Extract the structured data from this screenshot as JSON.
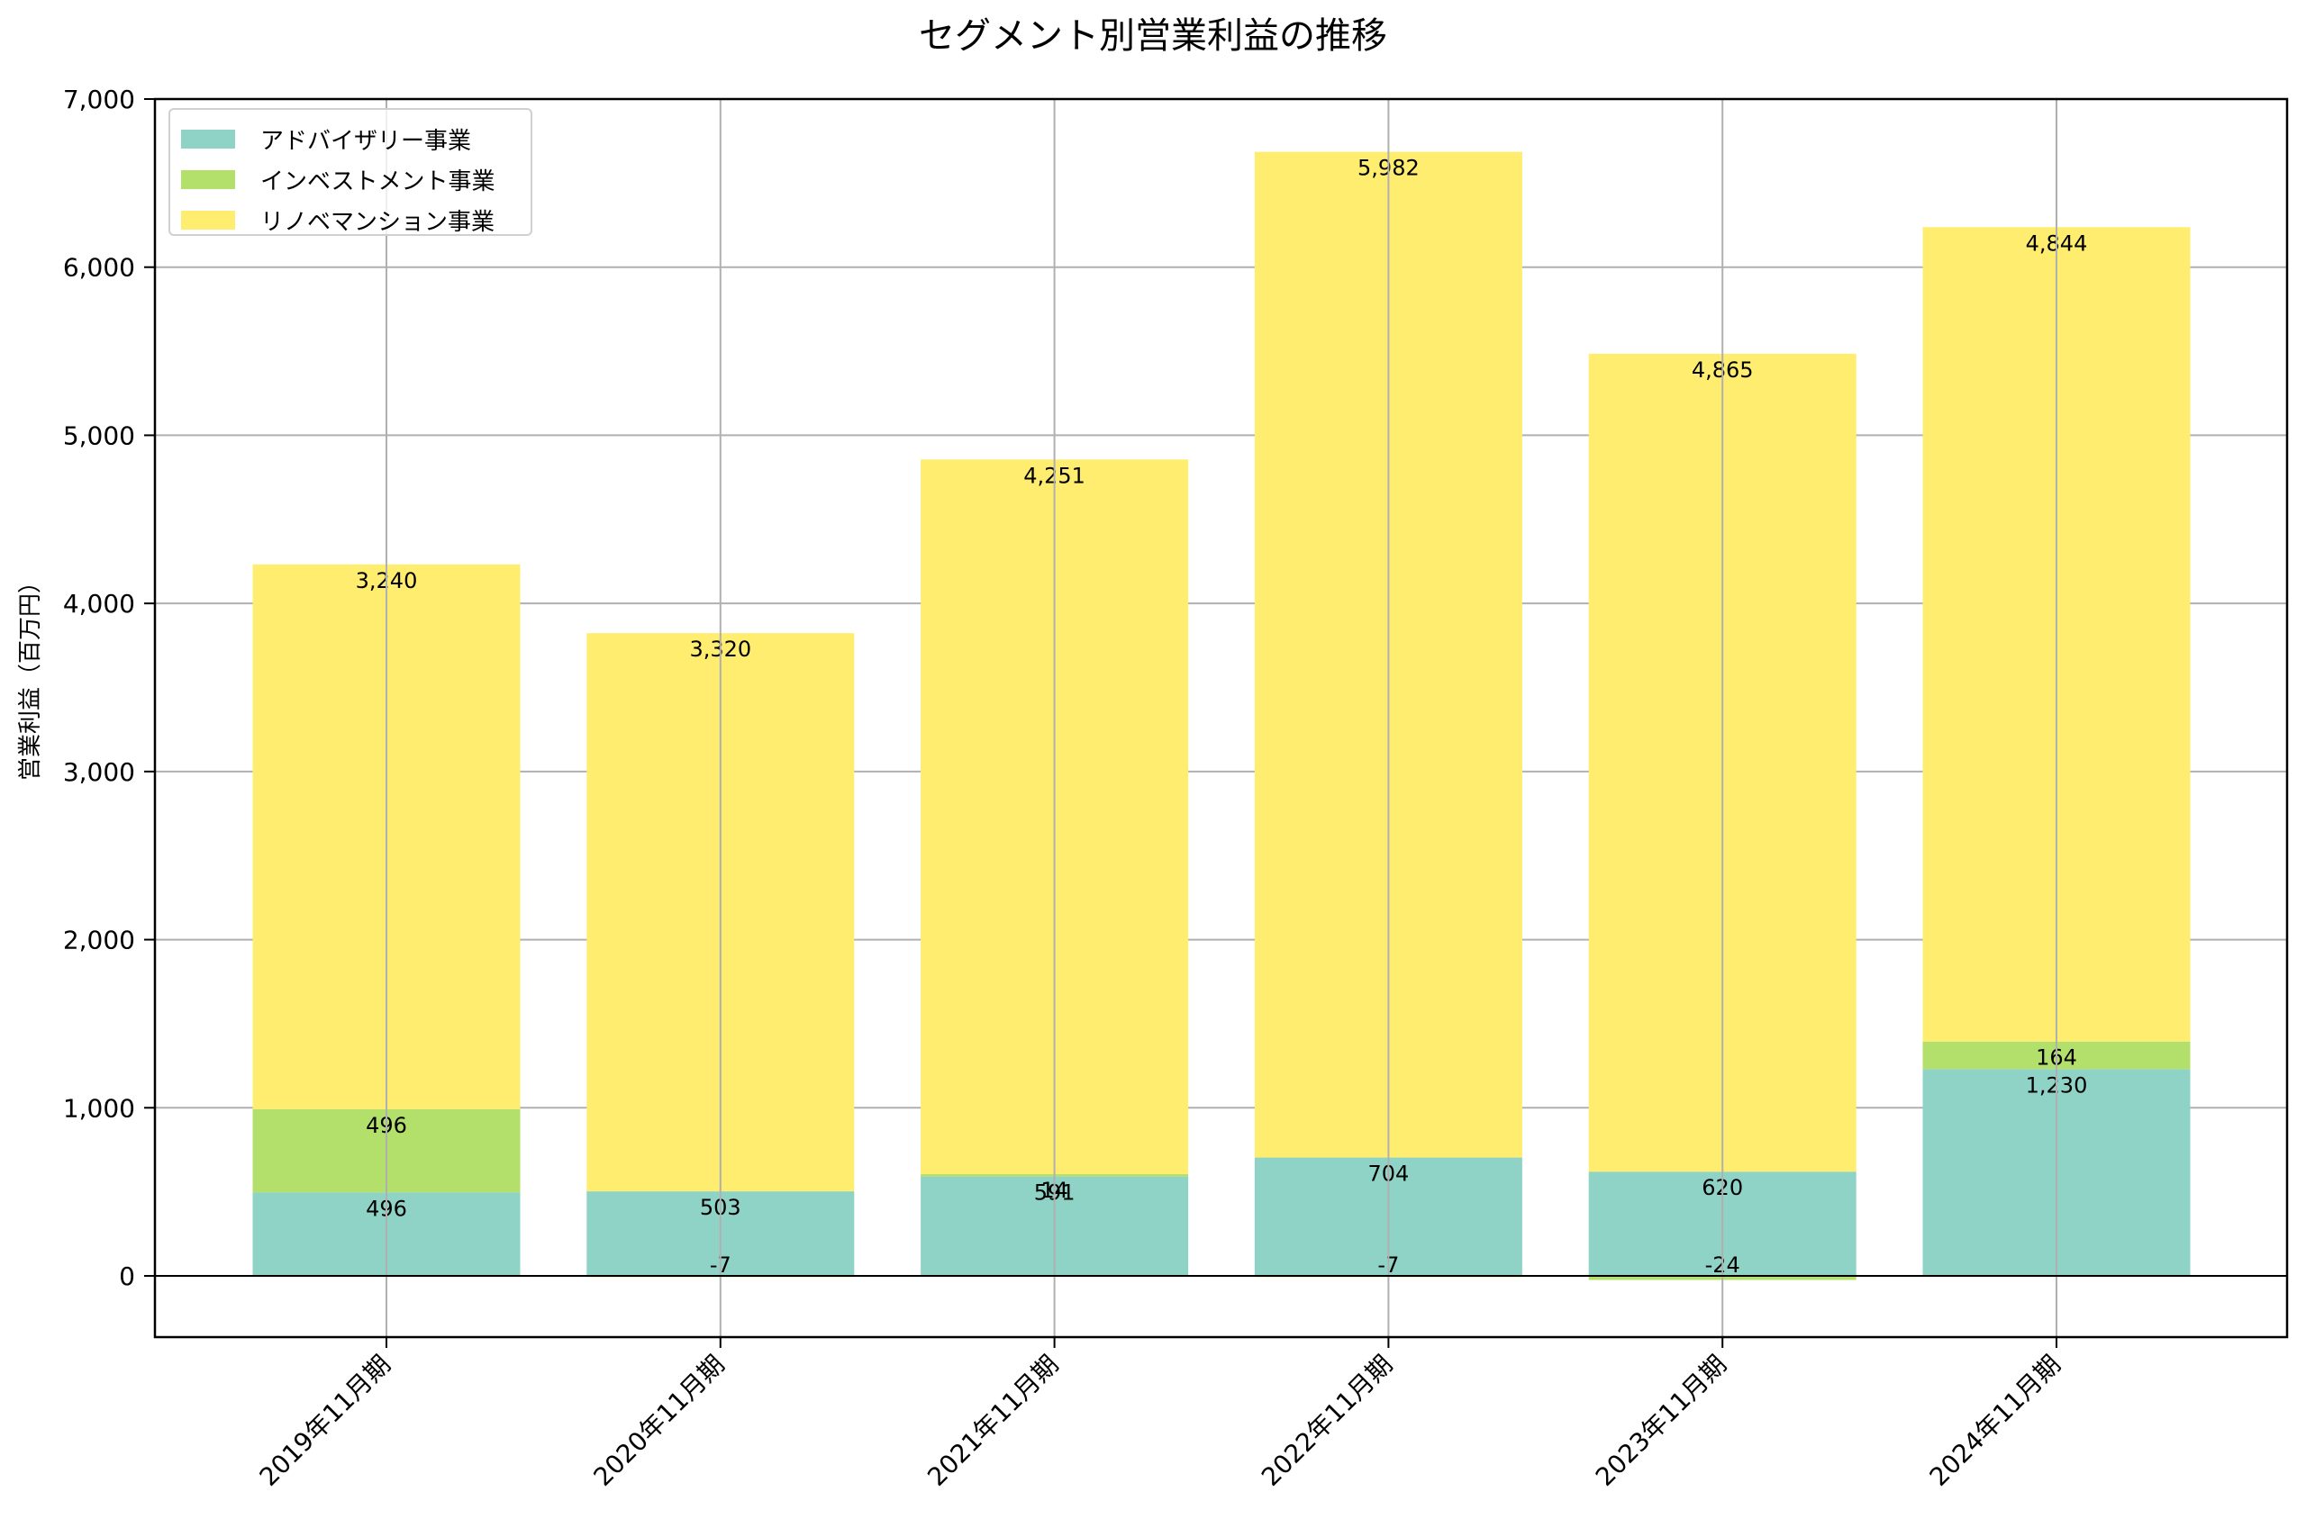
{
  "chart_data": {
    "type": "bar",
    "stacked": true,
    "title": "セグメント別営業利益の推移",
    "xlabel": "",
    "ylabel": "営業利益（百万円）",
    "categories": [
      "2019年11月期",
      "2020年11月期",
      "2021年11月期",
      "2022年11月期",
      "2023年11月期",
      "2024年11月期"
    ],
    "series": [
      {
        "name": "アドバイザリー事業",
        "color": "#8fd3c7",
        "values": [
          496,
          503,
          591,
          704,
          620,
          1230
        ]
      },
      {
        "name": "インベストメント事業",
        "color": "#b3df6b",
        "values": [
          496,
          -7,
          14,
          -7,
          -24,
          164
        ]
      },
      {
        "name": "リノベマンション事業",
        "color": "#ffed6f",
        "values": [
          3240,
          3320,
          4251,
          5982,
          4865,
          4844
        ]
      }
    ],
    "value_labels": {
      "アドバイザリー事業": [
        "496",
        "503",
        "591",
        "704",
        "620",
        "1,230"
      ],
      "インベストメント事業": [
        "496",
        "-7",
        "14",
        "-7",
        "-24",
        "164"
      ],
      "リノベマンション事業": [
        "3,240",
        "3,320",
        "4,251",
        "5,982",
        "4,865",
        "4,844"
      ]
    },
    "yticks": [
      0,
      1000,
      2000,
      3000,
      4000,
      5000,
      6000,
      7000
    ],
    "ytick_labels": [
      "0",
      "1,000",
      "2,000",
      "3,000",
      "4,000",
      "5,000",
      "6,000",
      "7,000"
    ],
    "ylim": [
      -360,
      7000
    ],
    "grid": true,
    "legend_position": "upper left",
    "xtick_rotation": 45
  }
}
